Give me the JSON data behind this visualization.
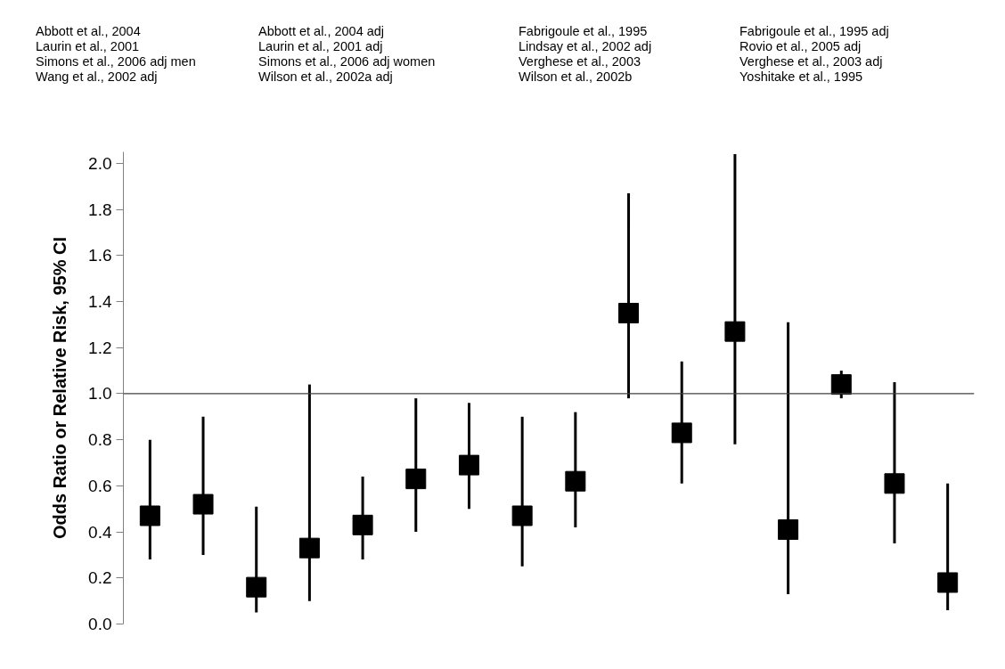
{
  "chart_data": {
    "type": "scatter",
    "marker": "square",
    "grid": false,
    "tick_labels": "y",
    "ylabel": "Odds Ratio or Relative Risk, 95% CI",
    "categories": [
      null,
      null,
      null,
      null,
      null,
      null,
      null,
      null,
      null,
      null,
      null,
      null,
      null,
      null,
      null,
      null
    ],
    "series": [
      {
        "color": "#000000",
        "values": [
          0.47,
          0.52,
          0.16,
          0.33,
          0.43,
          0.63,
          0.69,
          0.47,
          0.62,
          1.35,
          0.83,
          1.27,
          0.41,
          1.04,
          0.61,
          0.18
        ],
        "errors": [
          [
            0.28,
            0.8
          ],
          [
            0.3,
            0.9
          ],
          [
            0.05,
            0.51
          ],
          [
            0.1,
            1.04
          ],
          [
            0.28,
            0.64
          ],
          [
            0.4,
            0.98
          ],
          [
            0.5,
            0.96
          ],
          [
            0.25,
            0.9
          ],
          [
            0.42,
            0.92
          ],
          [
            0.98,
            1.87
          ],
          [
            0.61,
            1.14
          ],
          [
            0.78,
            2.04
          ],
          [
            0.13,
            1.31
          ],
          [
            0.98,
            1.1
          ],
          [
            0.35,
            1.05
          ],
          [
            0.06,
            0.61
          ]
        ]
      }
    ],
    "ylim": [
      0,
      2.05
    ],
    "yticks": [
      {
        "value": 0,
        "label": "0.0"
      },
      0.2,
      0.4,
      0.6,
      0.8,
      {
        "value": 1,
        "label": "1.0"
      },
      1.2,
      1.4,
      1.6,
      1.8,
      {
        "value": 2,
        "label": "2.0"
      }
    ],
    "ref_lines": [
      {
        "axis": "y",
        "value": 1,
        "color": "#404040"
      }
    ],
    "annotations": [
      "Abbott et al., 2004",
      "Laurin et al., 2001",
      "Simons et al., 2006 adj men",
      "Wang et al., 2002 adj",
      "Abbott et al., 2004 adj",
      "Laurin et al., 2001 adj",
      "Simons et al., 2006 adj women",
      "Wilson et al., 2002a adj",
      "Fabrigoule et al., 1995",
      "Lindsay et al., 2002 adj",
      "Verghese et al., 2003",
      "Wilson et al., 2002b",
      "Fabrigoule et al., 1995 adj",
      "Rovio et al., 2005 adj",
      "Verghese et al., 2003 adj",
      "Yoshitake et al., 1995"
    ]
  }
}
